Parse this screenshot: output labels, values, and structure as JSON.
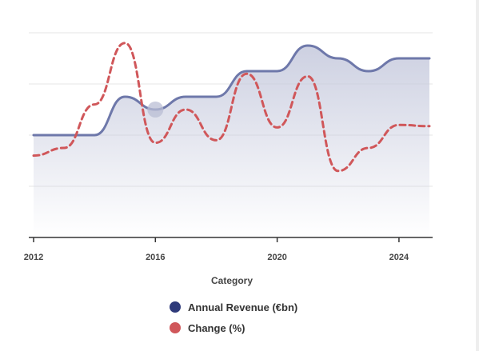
{
  "chart_data": {
    "type": "line",
    "title": "",
    "xlabel": "Category",
    "ylabel": "",
    "x": [
      2012,
      2013,
      2014,
      2015,
      2016,
      2017,
      2018,
      2019,
      2020,
      2021,
      2022,
      2023,
      2024,
      2025
    ],
    "xticks": [
      "2012",
      "2016",
      "2020",
      "2024"
    ],
    "grid": true,
    "legend": "bottom",
    "series": [
      {
        "name": "Annual Revenue (€bn)",
        "style": "solid-area",
        "color": "#6e78aa",
        "legend_color": "#2e3a7a",
        "values": [
          0,
          0,
          0,
          1.5,
          1.0,
          1.5,
          1.5,
          2.5,
          2.5,
          3.5,
          3.0,
          2.5,
          3.0,
          3.0
        ]
      },
      {
        "name": "Change (%)",
        "style": "dashed",
        "color": "#d0575a",
        "legend_color": "#d0575a",
        "values": [
          -0.8,
          -0.5,
          1.2,
          3.6,
          -0.3,
          1.0,
          -0.2,
          2.4,
          0.3,
          2.3,
          -1.4,
          -0.5,
          0.4,
          0.35
        ]
      }
    ],
    "ylim": [
      -4,
      4
    ],
    "highlight": {
      "series": 0,
      "x": 2016
    }
  }
}
